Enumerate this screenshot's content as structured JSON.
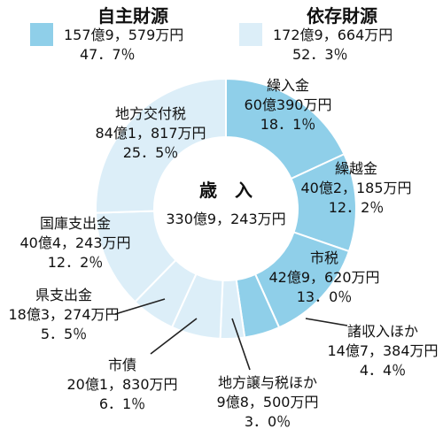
{
  "colors": {
    "own": "#8fcfe9",
    "dependent": "#dceef8",
    "stroke": "#ffffff",
    "leader": "#222222"
  },
  "chart_data": {
    "type": "pie",
    "center_label": "歳　入",
    "center_total": "330億9，243万円",
    "groups": [
      {
        "name": "自主財源",
        "amount": "157億9，579万円",
        "percent": "47．7％"
      },
      {
        "name": "依存財源",
        "amount": "172億9，664万円",
        "percent": "52．3％"
      }
    ],
    "slices": [
      {
        "name": "繰入金",
        "amount": "60億390万円",
        "percent": "18．1％",
        "value": 18.1,
        "group": 0
      },
      {
        "name": "繰越金",
        "amount": "40億2，185万円",
        "percent": "12．2％",
        "value": 12.2,
        "group": 0
      },
      {
        "name": "市税",
        "amount": "42億9，620万円",
        "percent": "13．0％",
        "value": 13.0,
        "group": 0
      },
      {
        "name": "諸収入ほか",
        "amount": "14億7，384万円",
        "percent": "4．4％",
        "value": 4.4,
        "group": 0
      },
      {
        "name": "地方譲与税ほか",
        "amount": "9億8，500万円",
        "percent": "3．0％",
        "value": 3.0,
        "group": 1
      },
      {
        "name": "市債",
        "amount": "20億1，830万円",
        "percent": "6．1％",
        "value": 6.1,
        "group": 1
      },
      {
        "name": "県支出金",
        "amount": "18億3，274万円",
        "percent": "5．5％",
        "value": 5.5,
        "group": 1
      },
      {
        "name": "国庫支出金",
        "amount": "40億4，243万円",
        "percent": "12．2％",
        "value": 12.2,
        "group": 1
      },
      {
        "name": "地方交付税",
        "amount": "84億1，817万円",
        "percent": "25．5％",
        "value": 25.5,
        "group": 1
      }
    ]
  }
}
